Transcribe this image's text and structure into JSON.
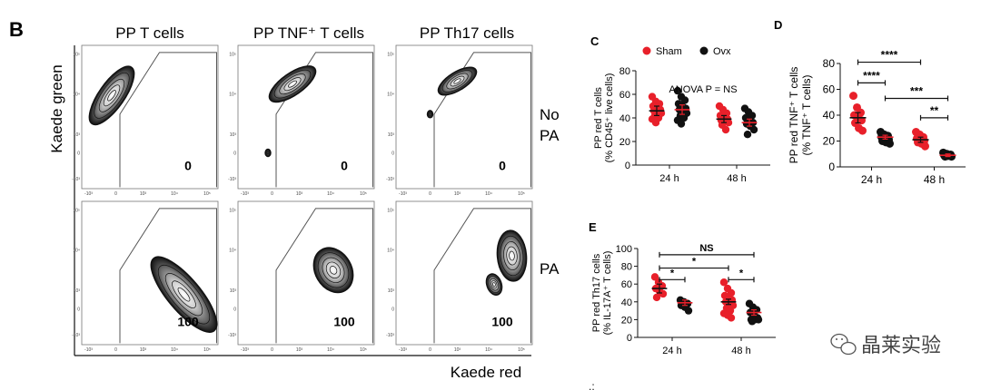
{
  "panel_b": {
    "letter": "B",
    "columns": [
      "PP T cells",
      "PP TNF⁺ T cells",
      "PP Th17 cells"
    ],
    "row_labels": [
      "No PA",
      "PA"
    ],
    "y_axis_label": "Kaede green",
    "x_axis_label": "Kaede red",
    "gate_values": [
      [
        "0",
        "0",
        "0"
      ],
      [
        "100",
        "100",
        "100"
      ]
    ],
    "tick_labels": [
      "-10³",
      "0",
      "10³",
      "10⁴",
      "10⁵"
    ]
  },
  "watermark": "晶莱实验",
  "chart_data": [
    {
      "id": "C",
      "type": "scatter",
      "letter": "C",
      "ylabel_lines": [
        "PP red T cells",
        "(% CD45⁺ live cells)"
      ],
      "yticks": [
        "0",
        "20",
        "40",
        "60",
        "80"
      ],
      "ylim": [
        0,
        80
      ],
      "categories": [
        "24 h",
        "48 h"
      ],
      "legend": [
        "Sham",
        "Ovx"
      ],
      "annotation": "ANOVA P = NS",
      "series": [
        {
          "name": "Sham",
          "color": "#e8202a",
          "groups": [
            {
              "category": "24 h",
              "mean": 46,
              "sem": 4,
              "points": [
                58,
                54,
                52,
                50,
                49,
                47,
                46,
                45,
                44,
                42,
                40,
                39,
                36
              ]
            },
            {
              "category": "48 h",
              "mean": 39,
              "sem": 3,
              "points": [
                50,
                47,
                44,
                42,
                40,
                39,
                38,
                37,
                36,
                34,
                30
              ]
            }
          ]
        },
        {
          "name": "Ovx",
          "color": "#111111",
          "groups": [
            {
              "category": "24 h",
              "mean": 47,
              "sem": 4,
              "points": [
                63,
                58,
                55,
                52,
                50,
                48,
                47,
                46,
                44,
                42,
                40,
                38,
                35
              ]
            },
            {
              "category": "48 h",
              "mean": 36,
              "sem": 3,
              "points": [
                48,
                45,
                42,
                40,
                38,
                36,
                35,
                33,
                30,
                26
              ]
            }
          ]
        }
      ],
      "comparisons": []
    },
    {
      "id": "D",
      "type": "scatter",
      "letter": "D",
      "ylabel_lines": [
        "PP red TNF⁺ T cells",
        "(% TNF⁺ T cells)"
      ],
      "yticks": [
        "0",
        "20",
        "40",
        "60",
        "80"
      ],
      "ylim": [
        0,
        80
      ],
      "categories": [
        "24 h",
        "48 h"
      ],
      "series": [
        {
          "name": "Sham",
          "color": "#e8202a",
          "groups": [
            {
              "category": "24 h",
              "mean": 38,
              "sem": 4,
              "points": [
                55,
                46,
                42,
                40,
                38,
                36,
                34,
                30,
                28
              ]
            },
            {
              "category": "48 h",
              "mean": 21,
              "sem": 2,
              "points": [
                27,
                25,
                23,
                22,
                21,
                20,
                19,
                18,
                16
              ]
            }
          ]
        },
        {
          "name": "Ovx",
          "color": "#111111",
          "groups": [
            {
              "category": "24 h",
              "mean": 23,
              "sem": 1.5,
              "points": [
                27,
                25,
                24,
                23,
                22,
                21,
                20,
                19,
                18
              ]
            },
            {
              "category": "48 h",
              "mean": 9,
              "sem": 1,
              "points": [
                11,
                10,
                9.5,
                9,
                8.5,
                8,
                8
              ]
            }
          ]
        }
      ],
      "comparisons": [
        {
          "label": "****",
          "from": "24 h Sham",
          "to": "48 h Sham",
          "y": 81
        },
        {
          "label": "****",
          "from": "24 h Sham",
          "to": "24 h Ovx",
          "y": 65
        },
        {
          "label": "***",
          "from": "24 h Ovx",
          "to": "48 h Ovx",
          "y": 53
        },
        {
          "label": "**",
          "from": "48 h Sham",
          "to": "48 h Ovx",
          "y": 38
        }
      ]
    },
    {
      "id": "E",
      "type": "scatter",
      "letter": "E",
      "ylabel_lines": [
        "PP red Th17 cells",
        "(% IL-17A⁺ T cells)"
      ],
      "yticks": [
        "0",
        "20",
        "40",
        "60",
        "80",
        "100"
      ],
      "ylim": [
        0,
        100
      ],
      "categories": [
        "24 h",
        "48 h"
      ],
      "series": [
        {
          "name": "Sham",
          "color": "#e8202a",
          "groups": [
            {
              "category": "24 h",
              "mean": 55,
              "sem": 5,
              "points": [
                68,
                62,
                58,
                55,
                52,
                49,
                45
              ]
            },
            {
              "category": "48 h",
              "mean": 40,
              "sem": 3,
              "points": [
                62,
                55,
                50,
                47,
                44,
                42,
                40,
                38,
                36,
                33,
                30,
                27,
                25,
                22
              ]
            }
          ]
        },
        {
          "name": "Ovx",
          "color": "#111111",
          "groups": [
            {
              "category": "24 h",
              "mean": 39,
              "sem": 3,
              "points": [
                42,
                40,
                38,
                36,
                34,
                30
              ]
            },
            {
              "category": "48 h",
              "mean": 28,
              "sem": 3,
              "points": [
                38,
                34,
                31,
                28,
                25,
                22,
                20,
                20,
                20,
                18
              ]
            }
          ]
        }
      ],
      "comparisons": [
        {
          "label": "NS",
          "from": "24 h Sham",
          "to": "48 h Ovx",
          "y": 93
        },
        {
          "label": "*",
          "from": "24 h Sham",
          "to": "48 h Sham",
          "y": 78
        },
        {
          "label": "*",
          "from": "24 h Sham",
          "to": "24 h Ovx",
          "y": 65
        },
        {
          "label": "*",
          "from": "48 h Sham",
          "to": "48 h Ovx",
          "y": 65
        }
      ]
    }
  ]
}
